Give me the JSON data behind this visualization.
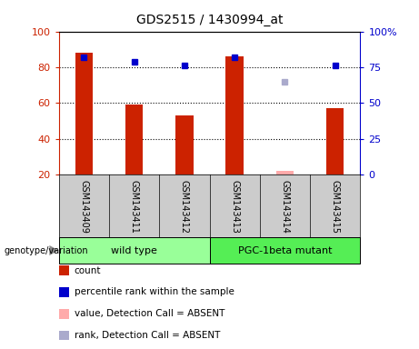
{
  "title": "GDS2515 / 1430994_at",
  "samples": [
    "GSM143409",
    "GSM143411",
    "GSM143412",
    "GSM143413",
    "GSM143414",
    "GSM143415"
  ],
  "bar_values": [
    88,
    59,
    53,
    86,
    null,
    57
  ],
  "blue_square_values": [
    82,
    79,
    76,
    82,
    null,
    76
  ],
  "pink_bar_value": 22,
  "pink_bar_index": 4,
  "lavender_square_value": 65,
  "lavender_square_index": 4,
  "bar_color": "#cc2200",
  "blue_color": "#0000cc",
  "pink_color": "#ffaaaa",
  "lavender_color": "#aaaacc",
  "bar_width": 0.35,
  "ylim_left": [
    20,
    100
  ],
  "ylim_right": [
    0,
    100
  ],
  "right_ticks": [
    0,
    25,
    50,
    75,
    100
  ],
  "right_tick_labels": [
    "0",
    "25",
    "50",
    "75",
    "100%"
  ],
  "left_ticks": [
    20,
    40,
    60,
    80,
    100
  ],
  "dotted_lines": [
    40,
    60,
    80
  ],
  "group_colors": [
    "#99ff99",
    "#55ee55"
  ],
  "group_bg_color": "#cccccc",
  "legend_items": [
    {
      "label": "count",
      "color": "#cc2200"
    },
    {
      "label": "percentile rank within the sample",
      "color": "#0000cc"
    },
    {
      "label": "value, Detection Call = ABSENT",
      "color": "#ffaaaa"
    },
    {
      "label": "rank, Detection Call = ABSENT",
      "color": "#aaaacc"
    }
  ],
  "figsize": [
    4.61,
    3.84
  ],
  "dpi": 100
}
